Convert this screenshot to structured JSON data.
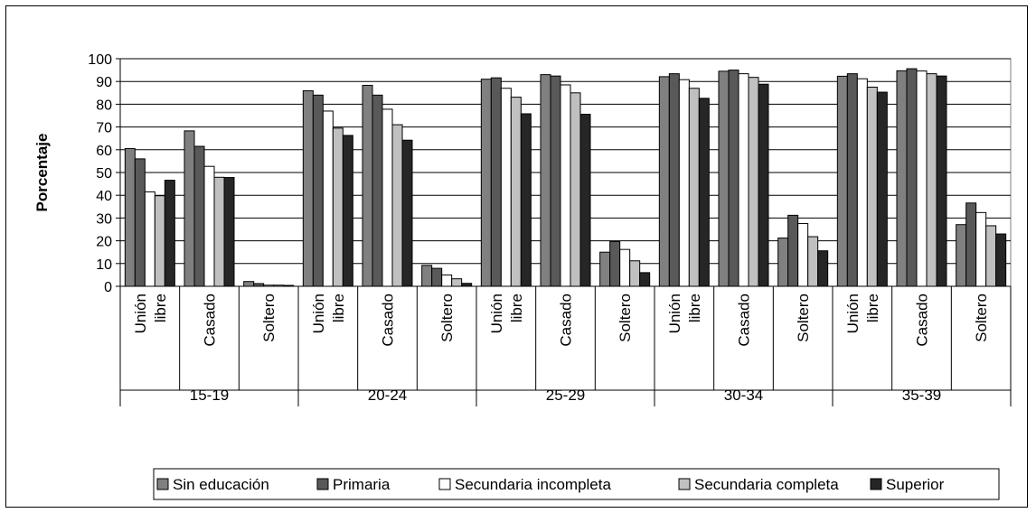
{
  "chart_data": {
    "type": "bar",
    "ylabel": "Porcentaje",
    "ylim": [
      0,
      100
    ],
    "yticks": [
      0,
      10,
      20,
      30,
      40,
      50,
      60,
      70,
      80,
      90,
      100
    ],
    "grid": true,
    "legend_position": "bottom",
    "groups": [
      "15-19",
      "20-24",
      "25-29",
      "30-34",
      "35-39"
    ],
    "subcategories": [
      "Unión libre",
      "Casado",
      "Soltero"
    ],
    "series": [
      {
        "name": "Sin educación",
        "color": "#808080",
        "values": [
          [
            60.5,
            68.3,
            2.1
          ],
          [
            85.9,
            88.3,
            9.2
          ],
          [
            91.0,
            93.0,
            15.0
          ],
          [
            92.1,
            94.5,
            21.2
          ],
          [
            92.3,
            94.7,
            27.1
          ]
        ]
      },
      {
        "name": "Primaria",
        "color": "#595959",
        "values": [
          [
            56.0,
            61.5,
            1.2
          ],
          [
            84.0,
            84.0,
            7.9
          ],
          [
            91.6,
            92.4,
            19.7
          ],
          [
            93.4,
            95.0,
            31.2
          ],
          [
            93.4,
            95.6,
            36.6
          ]
        ]
      },
      {
        "name": "Secundaria incompleta",
        "color": "#ffffff",
        "values": [
          [
            41.5,
            52.7,
            0.5
          ],
          [
            77.0,
            77.8,
            5.0
          ],
          [
            87.0,
            88.5,
            16.2
          ],
          [
            90.8,
            93.4,
            27.6
          ],
          [
            91.2,
            94.6,
            32.4
          ]
        ]
      },
      {
        "name": "Secundaria completa",
        "color": "#c0c0c0",
        "values": [
          [
            39.8,
            47.9,
            0.5
          ],
          [
            69.5,
            71.0,
            3.3
          ],
          [
            83.1,
            85.0,
            11.2
          ],
          [
            87.0,
            91.8,
            21.8
          ],
          [
            87.5,
            93.4,
            26.6
          ]
        ]
      },
      {
        "name": "Superior",
        "color": "#262626",
        "values": [
          [
            46.6,
            47.8,
            0.4
          ],
          [
            66.3,
            64.2,
            1.3
          ],
          [
            75.8,
            75.6,
            6.0
          ],
          [
            82.6,
            88.8,
            15.6
          ],
          [
            85.3,
            92.4,
            23.0
          ]
        ]
      }
    ]
  }
}
